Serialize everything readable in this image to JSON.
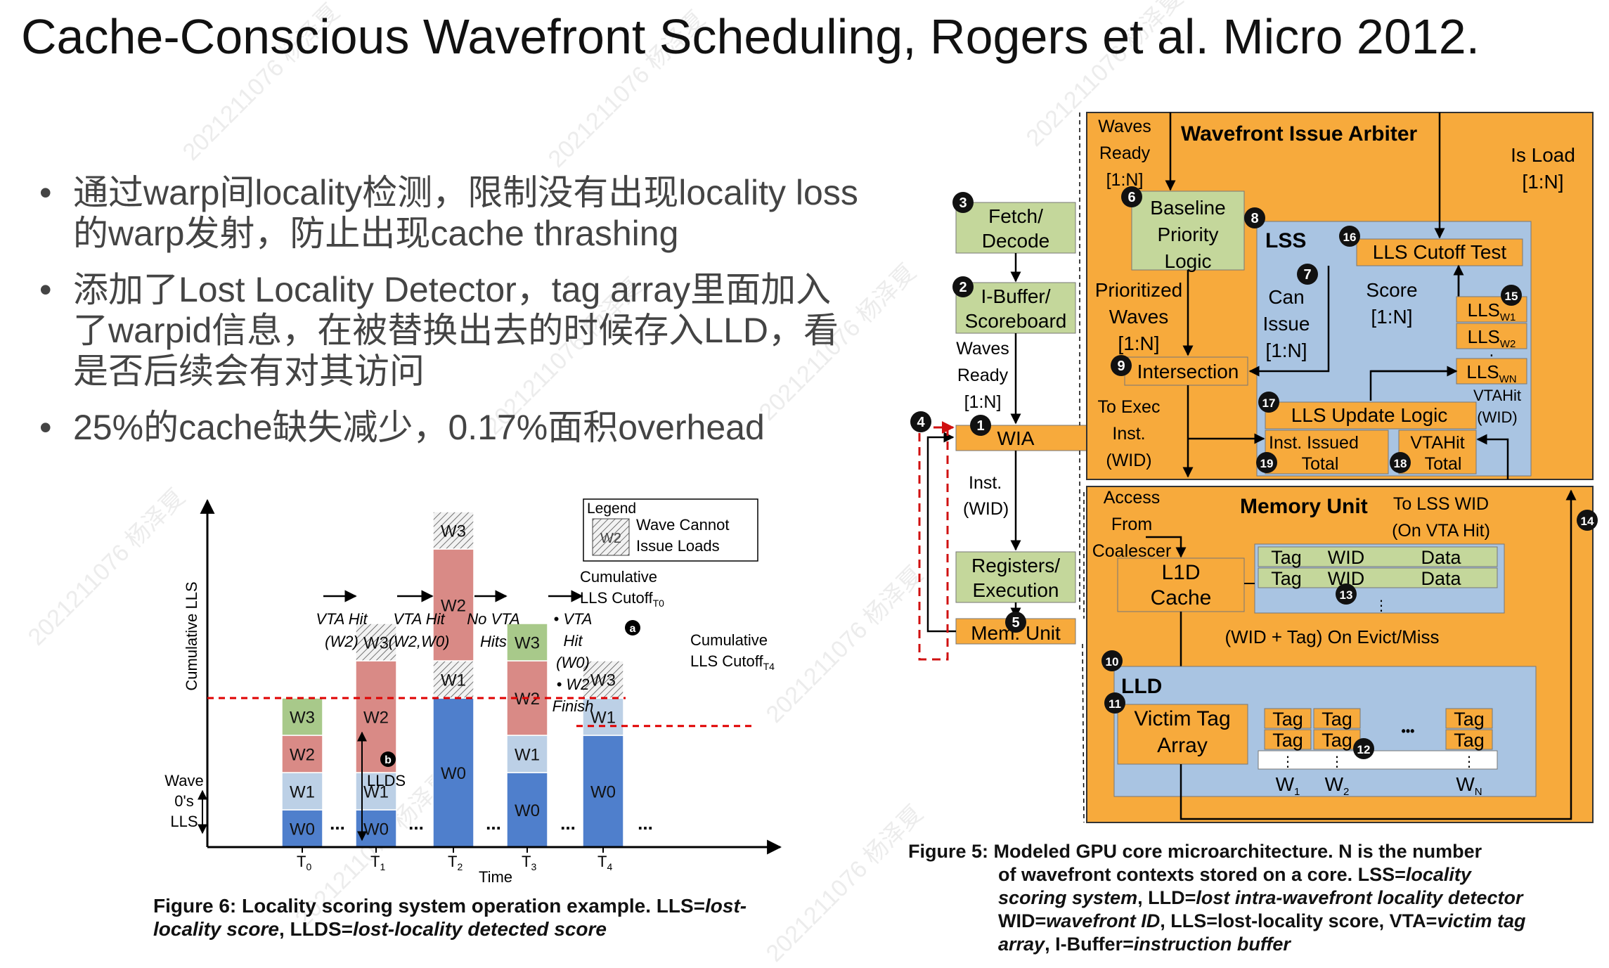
{
  "title": "Cache-Conscious Wavefront Scheduling, Rogers et al. Micro 2012.",
  "bullets": [
    "通过warp间locality检测，限制没有出现locality loss的warp发射，防止出现cache thrashing",
    "添加了Lost Locality Detector，tag array里面加入了warpid信息，在被替换出去的时候存入LLD，看是否后续会有对其访问",
    "25%的cache缺失减少，0.17%面积overhead"
  ],
  "bullet_symbol": "•",
  "watermark": "20212110​76 杨泽夏",
  "fig6": {
    "caption_bold": "Figure 6: Locality scoring system operation example. LLS=",
    "caption_it1": "lost-locality score",
    "caption_mid": ", LLDS=",
    "caption_it2": "lost-locality detected score",
    "ylabel": "Cumulative LLS",
    "xlabel": "Time",
    "legend_title": "Legend",
    "legend_swatch": "W2",
    "legend_l1": "Wave Cannot",
    "legend_l2": "Issue Loads",
    "wave_zero_1": "Wave",
    "wave_zero_2": "0's",
    "wave_zero_3": "LLS",
    "cutoff1_a": "Cumulative",
    "cutoff1_b": "LLS Cutoff",
    "cutoff1_sub": "T0",
    "cutoff2_a": "Cumulative",
    "cutoff2_b": "LLS Cutoff",
    "cutoff2_sub": "T4",
    "marker_a": "a",
    "marker_b": "b",
    "llds": "LLDS",
    "dots": "...",
    "ann": [
      {
        "t": "VTA Hit",
        "s": "(W2)"
      },
      {
        "t": "VTA Hit",
        "s": "(W2,W0)"
      },
      {
        "t": "No VTA",
        "s": "Hits"
      }
    ],
    "ann4": [
      "•  VTA",
      "Hit",
      "(W0)",
      "•  W2",
      "Finish"
    ],
    "ticks": [
      "T0",
      "T1",
      "T2",
      "T3",
      "T4"
    ],
    "colors": {
      "w0": "#4f7fcc",
      "w1": "#bcd0e6",
      "w2": "#d98a86",
      "w3": "#a8c98a",
      "hatch": "#e8e8e8",
      "cutoff": "#e00000"
    }
  },
  "chart_data": {
    "type": "bar",
    "stacked": true,
    "categories": [
      "T0",
      "T1",
      "T2",
      "T3",
      "T4"
    ],
    "ylabel": "Cumulative LLS",
    "xlabel": "Time",
    "series": [
      {
        "name": "W0",
        "values": [
          1,
          1,
          4,
          2,
          3
        ]
      },
      {
        "name": "W1",
        "values": [
          1,
          1,
          1,
          1,
          1
        ]
      },
      {
        "name": "W2",
        "values": [
          1,
          3,
          3,
          2,
          0
        ]
      },
      {
        "name": "W3",
        "values": [
          1,
          1,
          1,
          1,
          1
        ]
      }
    ],
    "hatched_segments": [
      {
        "category": "T1",
        "series": "W3"
      },
      {
        "category": "T2",
        "series": "W1"
      },
      {
        "category": "T2",
        "series": "W3"
      },
      {
        "category": "T4",
        "series": "W3"
      }
    ],
    "cutoff_lines": [
      {
        "label": "Cumulative LLS Cutoff T0",
        "value": 4
      },
      {
        "label": "Cumulative LLS Cutoff T4",
        "value": 4
      }
    ]
  },
  "fig5": {
    "caption_l1": "Figure 5: Modeled GPU core microarchitecture. N is the number",
    "caption_l2": "of wavefront contexts stored on a core. LSS=",
    "caption_l2i": "locality",
    "caption_l3i": "scoring system",
    "caption_l3": ", LLD=",
    "caption_l3i2": "lost intra-wavefront locality detector",
    "caption_l4": "WID=",
    "caption_l4i": "wavefront ID",
    "caption_l4b": ", LLS=lost-locality score, VTA=",
    "caption_l4i2": "victim tag",
    "caption_l5i": "array",
    "caption_l5": ", I-Buffer=",
    "caption_l5i2": "instruction buffer",
    "pipeline": {
      "fetch": [
        "Fetch/",
        "Decode"
      ],
      "ibuf": [
        "I-Buffer/",
        "Scoreboard"
      ],
      "waves_ready": [
        "Waves",
        "Ready",
        "[1:N]"
      ],
      "wia": "WIA",
      "inst": [
        "Inst.",
        "(WID)"
      ],
      "regs": [
        "Registers/",
        "Execution"
      ],
      "mem": "Mem. Unit"
    },
    "arbiter": {
      "title": "Wavefront Issue Arbiter",
      "waves_ready": [
        "Waves",
        "Ready",
        "[1:N]"
      ],
      "is_load": [
        "Is Load",
        "[1:N]"
      ],
      "baseline": [
        "Baseline",
        "Priority",
        "Logic"
      ],
      "prioritized": [
        "Prioritized",
        "Waves",
        "[1:N]"
      ],
      "intersection": "Intersection",
      "to_exec": [
        "To Exec",
        "Inst.",
        "(WID)"
      ]
    },
    "lss": {
      "title": "LSS",
      "cutoff": "LLS Cutoff Test",
      "can_issue": [
        "Can",
        "Issue",
        "[1:N]"
      ],
      "score": [
        "Score",
        "[1:N]"
      ],
      "lls": [
        "LLS",
        "LLS",
        "LLS"
      ],
      "lls_sub": [
        "W1",
        "W2",
        "WN"
      ],
      "vdots": "⋮",
      "update": "LLS Update Logic",
      "vtahit_wid": [
        "VTAHit",
        "(WID)"
      ],
      "inst_issued": "Inst. Issued",
      "total": "Total",
      "vtahit": "VTAHit",
      "total2": "Total"
    },
    "mem": {
      "title": "Memory Unit",
      "to_lss": [
        "To LSS WID",
        "(On VTA Hit)"
      ],
      "access": [
        "Access",
        "From",
        "Coalescer"
      ],
      "l1d": [
        "L1D",
        "Cache"
      ],
      "tag": "Tag",
      "wid": "WID",
      "data": "Data",
      "evict": "(WID + Tag) On Evict/Miss"
    },
    "lld": {
      "title": "LLD",
      "victim": [
        "Victim Tag",
        "Array"
      ],
      "tag": "Tag",
      "hdots": "•••",
      "w_labels": [
        "W",
        "W",
        "W"
      ],
      "w_subs": [
        "1",
        "2",
        "N"
      ]
    },
    "numbers": [
      "1",
      "2",
      "3",
      "4",
      "5",
      "6",
      "7",
      "8",
      "9",
      "10",
      "11",
      "12",
      "13",
      "14",
      "15",
      "16",
      "17",
      "18",
      "19"
    ],
    "colors": {
      "orange": "#f7aa3c",
      "green": "#c4d79b",
      "blue": "#a9c4e2",
      "red": "#d01010"
    }
  }
}
